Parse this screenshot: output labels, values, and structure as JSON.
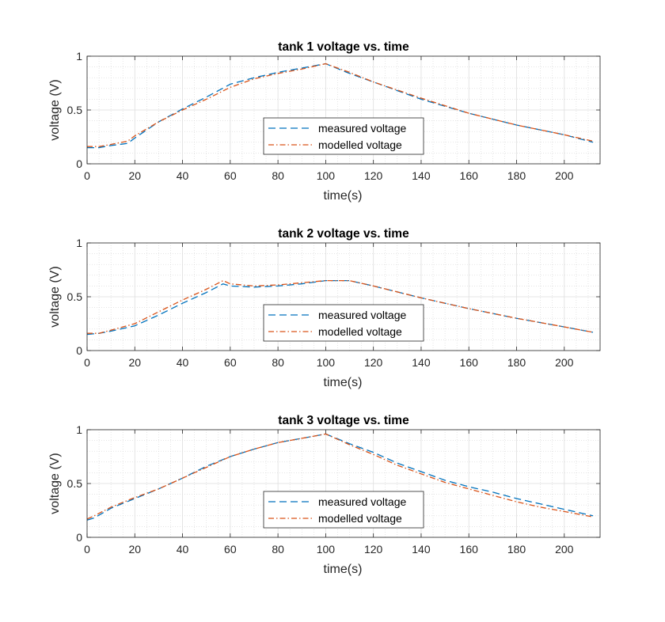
{
  "chart_data": [
    {
      "type": "line",
      "title": "tank 1 voltage vs. time",
      "xlabel": "time(s)",
      "ylabel": "voltage (V)",
      "xlim": [
        0,
        215
      ],
      "ylim": [
        0,
        1
      ],
      "xticks": [
        "0",
        "20",
        "40",
        "60",
        "80",
        "100",
        "120",
        "140",
        "160",
        "180",
        "200"
      ],
      "yticks": [
        "0",
        "0.5",
        "1"
      ],
      "grid": true,
      "minor_grid": true,
      "legend_position": "lower-center",
      "series": [
        {
          "name": "measured voltage",
          "style": "dashed",
          "color": "#0072BD",
          "x": [
            0,
            5,
            10,
            17,
            20,
            30,
            40,
            50,
            60,
            70,
            80,
            90,
            100,
            110,
            120,
            140,
            160,
            180,
            200,
            212
          ],
          "y": [
            0.15,
            0.15,
            0.17,
            0.19,
            0.24,
            0.39,
            0.51,
            0.62,
            0.74,
            0.8,
            0.85,
            0.89,
            0.93,
            0.84,
            0.76,
            0.6,
            0.47,
            0.36,
            0.27,
            0.2
          ]
        },
        {
          "name": "modelled voltage",
          "style": "dashdot",
          "color": "#D95319",
          "x": [
            0,
            5,
            10,
            17,
            20,
            30,
            40,
            50,
            60,
            70,
            80,
            90,
            100,
            110,
            120,
            140,
            160,
            180,
            200,
            212
          ],
          "y": [
            0.16,
            0.16,
            0.18,
            0.21,
            0.26,
            0.39,
            0.5,
            0.6,
            0.71,
            0.79,
            0.84,
            0.88,
            0.93,
            0.85,
            0.76,
            0.61,
            0.47,
            0.36,
            0.27,
            0.21
          ]
        }
      ]
    },
    {
      "type": "line",
      "title": "tank 2 voltage vs. time",
      "xlabel": "time(s)",
      "ylabel": "voltage (V)",
      "xlim": [
        0,
        215
      ],
      "ylim": [
        0,
        1
      ],
      "xticks": [
        "0",
        "20",
        "40",
        "60",
        "80",
        "100",
        "120",
        "140",
        "160",
        "180",
        "200"
      ],
      "yticks": [
        "0",
        "0.5",
        "1"
      ],
      "grid": true,
      "minor_grid": true,
      "legend_position": "lower-center",
      "series": [
        {
          "name": "measured voltage",
          "style": "dashed",
          "color": "#0072BD",
          "x": [
            0,
            5,
            10,
            20,
            30,
            40,
            50,
            57,
            60,
            70,
            80,
            90,
            100,
            110,
            120,
            140,
            160,
            180,
            200,
            212
          ],
          "y": [
            0.15,
            0.16,
            0.18,
            0.23,
            0.33,
            0.44,
            0.54,
            0.62,
            0.6,
            0.59,
            0.6,
            0.62,
            0.65,
            0.65,
            0.6,
            0.49,
            0.39,
            0.3,
            0.22,
            0.17
          ]
        },
        {
          "name": "modelled voltage",
          "style": "dashdot",
          "color": "#D95319",
          "x": [
            0,
            5,
            10,
            20,
            30,
            40,
            50,
            57,
            60,
            70,
            80,
            90,
            100,
            110,
            120,
            140,
            160,
            180,
            200,
            212
          ],
          "y": [
            0.16,
            0.16,
            0.19,
            0.25,
            0.36,
            0.47,
            0.57,
            0.65,
            0.62,
            0.6,
            0.61,
            0.63,
            0.65,
            0.65,
            0.6,
            0.49,
            0.39,
            0.3,
            0.22,
            0.17
          ]
        }
      ]
    },
    {
      "type": "line",
      "title": "tank 3 voltage vs. time",
      "xlabel": "time(s)",
      "ylabel": "voltage (V)",
      "xlim": [
        0,
        215
      ],
      "ylim": [
        0,
        1
      ],
      "xticks": [
        "0",
        "20",
        "40",
        "60",
        "80",
        "100",
        "120",
        "140",
        "160",
        "180",
        "200"
      ],
      "yticks": [
        "0",
        "0.5",
        "1"
      ],
      "grid": true,
      "minor_grid": true,
      "legend_position": "lower-center",
      "series": [
        {
          "name": "measured voltage",
          "style": "dashed",
          "color": "#0072BD",
          "x": [
            0,
            3,
            10,
            20,
            30,
            40,
            50,
            60,
            70,
            80,
            90,
            100,
            110,
            120,
            130,
            140,
            150,
            160,
            170,
            180,
            190,
            200,
            212
          ],
          "y": [
            0.16,
            0.18,
            0.27,
            0.36,
            0.45,
            0.55,
            0.66,
            0.75,
            0.82,
            0.88,
            0.92,
            0.96,
            0.87,
            0.79,
            0.69,
            0.61,
            0.53,
            0.47,
            0.42,
            0.36,
            0.31,
            0.26,
            0.2
          ]
        },
        {
          "name": "modelled voltage",
          "style": "dashdot",
          "color": "#D95319",
          "x": [
            0,
            3,
            10,
            20,
            30,
            40,
            50,
            60,
            70,
            80,
            90,
            100,
            110,
            120,
            130,
            140,
            150,
            160,
            170,
            180,
            190,
            200,
            212
          ],
          "y": [
            0.17,
            0.2,
            0.28,
            0.37,
            0.45,
            0.55,
            0.65,
            0.75,
            0.82,
            0.88,
            0.92,
            0.96,
            0.86,
            0.77,
            0.67,
            0.59,
            0.51,
            0.45,
            0.39,
            0.33,
            0.28,
            0.24,
            0.19
          ]
        }
      ]
    }
  ]
}
